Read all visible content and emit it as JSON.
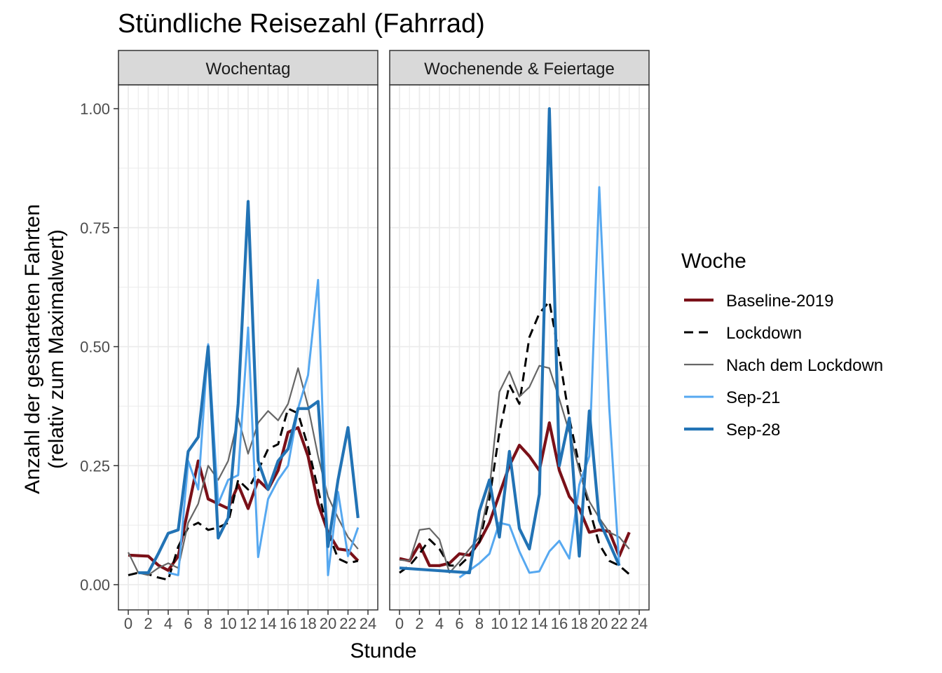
{
  "chart_data": {
    "type": "line",
    "title": "Stündliche Reisezahl (Fahrrad)",
    "xlabel": "Stunde",
    "ylabel_line1": "Anzahl der gestarteten Fahrten",
    "ylabel_line2": "(relativ zum Maximalwert)",
    "xlim": [
      0,
      24
    ],
    "ylim": [
      0,
      1
    ],
    "x_ticks": [
      "0",
      "2",
      "4",
      "6",
      "8",
      "10",
      "12",
      "14",
      "16",
      "18",
      "20",
      "22",
      "24"
    ],
    "y_ticks": [
      "0.00",
      "0.25",
      "0.50",
      "0.75",
      "1.00"
    ],
    "grid": true,
    "legend_title": "Woche",
    "legend_position": "right",
    "facets": [
      "Wochentag",
      "Wochenende & Feiertage"
    ],
    "series": [
      {
        "name": "Baseline-2019",
        "color": "#7a1018",
        "dash": "solid",
        "width": "thick",
        "data": [
          {
            "x": [
              0,
              1,
              2,
              3,
              4,
              5,
              6,
              7,
              8,
              9,
              10,
              11,
              12,
              13,
              14,
              15,
              16,
              17,
              18,
              19,
              20,
              21,
              22,
              23
            ],
            "y": [
              0.062,
              0.061,
              0.06,
              0.041,
              0.03,
              0.06,
              0.16,
              0.26,
              0.18,
              0.17,
              0.16,
              0.21,
              0.16,
              0.22,
              0.2,
              0.24,
              0.32,
              0.33,
              0.27,
              0.17,
              0.11,
              0.075,
              0.072,
              0.05
            ]
          },
          {
            "x": [
              0,
              1,
              2,
              3,
              4,
              5,
              6,
              7,
              8,
              9,
              10,
              11,
              12,
              13,
              14,
              15,
              16,
              17,
              18,
              19,
              20,
              21,
              22,
              23
            ],
            "y": [
              0.055,
              0.05,
              0.085,
              0.04,
              0.04,
              0.045,
              0.065,
              0.062,
              0.09,
              0.13,
              0.19,
              0.25,
              0.293,
              0.27,
              0.24,
              0.34,
              0.24,
              0.185,
              0.16,
              0.11,
              0.115,
              0.112,
              0.06,
              0.11
            ]
          }
        ]
      },
      {
        "name": "Lockdown",
        "color": "#000000",
        "dash": "dashed",
        "width": "medium",
        "data": [
          {
            "x": [
              0,
              1,
              2,
              3,
              4,
              5,
              6,
              7,
              8,
              9,
              10,
              11,
              12,
              13,
              14,
              15,
              16,
              17,
              18,
              19,
              20,
              21,
              22,
              23
            ],
            "y": [
              0.02,
              0.025,
              0.022,
              0.015,
              0.01,
              0.08,
              0.12,
              0.13,
              0.115,
              0.12,
              0.13,
              0.22,
              0.2,
              0.24,
              0.285,
              0.295,
              0.37,
              0.36,
              0.29,
              0.2,
              0.11,
              0.055,
              0.045,
              0.05
            ]
          },
          {
            "x": [
              0,
              1,
              2,
              3,
              4,
              5,
              6,
              7,
              8,
              9,
              10,
              11,
              12,
              13,
              14,
              15,
              16,
              17,
              18,
              19,
              20,
              21,
              22,
              23
            ],
            "y": [
              0.025,
              0.04,
              0.065,
              0.095,
              0.075,
              0.04,
              0.04,
              0.06,
              0.09,
              0.18,
              0.32,
              0.42,
              0.38,
              0.52,
              0.57,
              0.595,
              0.48,
              0.35,
              0.25,
              0.16,
              0.085,
              0.05,
              0.04,
              0.022
            ]
          }
        ]
      },
      {
        "name": "Nach dem Lockdown",
        "color": "#666666",
        "dash": "solid",
        "width": "thin",
        "data": [
          {
            "x": [
              0,
              1,
              2,
              3,
              4,
              5,
              6,
              7,
              8,
              9,
              10,
              11,
              12,
              13,
              14,
              15,
              16,
              17,
              18,
              19,
              20,
              21,
              22,
              23
            ],
            "y": [
              0.068,
              0.025,
              0.02,
              0.035,
              0.045,
              0.035,
              0.13,
              0.17,
              0.25,
              0.22,
              0.26,
              0.35,
              0.275,
              0.34,
              0.365,
              0.345,
              0.38,
              0.455,
              0.375,
              0.27,
              0.185,
              0.14,
              0.1,
              0.075
            ]
          },
          {
            "x": [
              0,
              1,
              2,
              3,
              4,
              5,
              6,
              7,
              8,
              9,
              10,
              11,
              12,
              13,
              14,
              15,
              16,
              17,
              18,
              19,
              20,
              21,
              22,
              23
            ],
            "y": [
              0.052,
              0.05,
              0.115,
              0.118,
              0.095,
              0.025,
              0.048,
              0.075,
              0.1,
              0.2,
              0.405,
              0.448,
              0.395,
              0.415,
              0.46,
              0.455,
              0.39,
              0.32,
              0.24,
              0.175,
              0.14,
              0.11,
              0.1,
              0.075
            ]
          }
        ]
      },
      {
        "name": "Sep-21",
        "color": "#56a8f0",
        "dash": "solid",
        "width": "medium",
        "data": [
          {
            "x": [
              4,
              5,
              6,
              7,
              8,
              9,
              10,
              11,
              12,
              13,
              14,
              15,
              16,
              17,
              18,
              19,
              20,
              21,
              22,
              23
            ],
            "y": [
              0.025,
              0.02,
              0.26,
              0.2,
              0.505,
              0.17,
              0.22,
              0.23,
              0.54,
              0.058,
              0.18,
              0.22,
              0.25,
              0.37,
              0.44,
              0.64,
              0.02,
              0.195,
              0.06,
              0.12
            ]
          },
          {
            "x": [
              6,
              7,
              8,
              9,
              10,
              11,
              12,
              13,
              14,
              15,
              16,
              17,
              18,
              19,
              20,
              21,
              22
            ],
            "y": [
              0.015,
              0.03,
              0.045,
              0.065,
              0.13,
              0.125,
              0.07,
              0.025,
              0.028,
              0.07,
              0.092,
              0.055,
              0.21,
              0.27,
              0.835,
              0.37,
              0.04
            ]
          }
        ]
      },
      {
        "name": "Sep-28",
        "color": "#2273b5",
        "dash": "solid",
        "width": "thick",
        "data": [
          {
            "x": [
              1,
              2,
              3,
              4,
              5,
              6,
              7,
              8,
              9,
              10,
              11,
              12,
              13,
              14,
              15,
              16,
              17,
              18,
              19,
              20,
              21,
              22,
              23
            ],
            "y": [
              0.025,
              0.025,
              0.065,
              0.108,
              0.115,
              0.28,
              0.31,
              0.5,
              0.098,
              0.14,
              0.38,
              0.805,
              0.26,
              0.2,
              0.26,
              0.285,
              0.37,
              0.37,
              0.385,
              0.08,
              0.22,
              0.33,
              0.14
            ]
          },
          {
            "x": [
              0,
              7,
              8,
              9,
              10,
              11,
              12,
              13,
              14,
              15,
              16,
              17,
              18,
              19,
              20,
              22
            ],
            "y": [
              0.035,
              0.025,
              0.155,
              0.22,
              0.1,
              0.28,
              0.118,
              0.075,
              0.19,
              1.0,
              0.25,
              0.35,
              0.06,
              0.365,
              0.135,
              0.04
            ]
          }
        ]
      }
    ]
  }
}
